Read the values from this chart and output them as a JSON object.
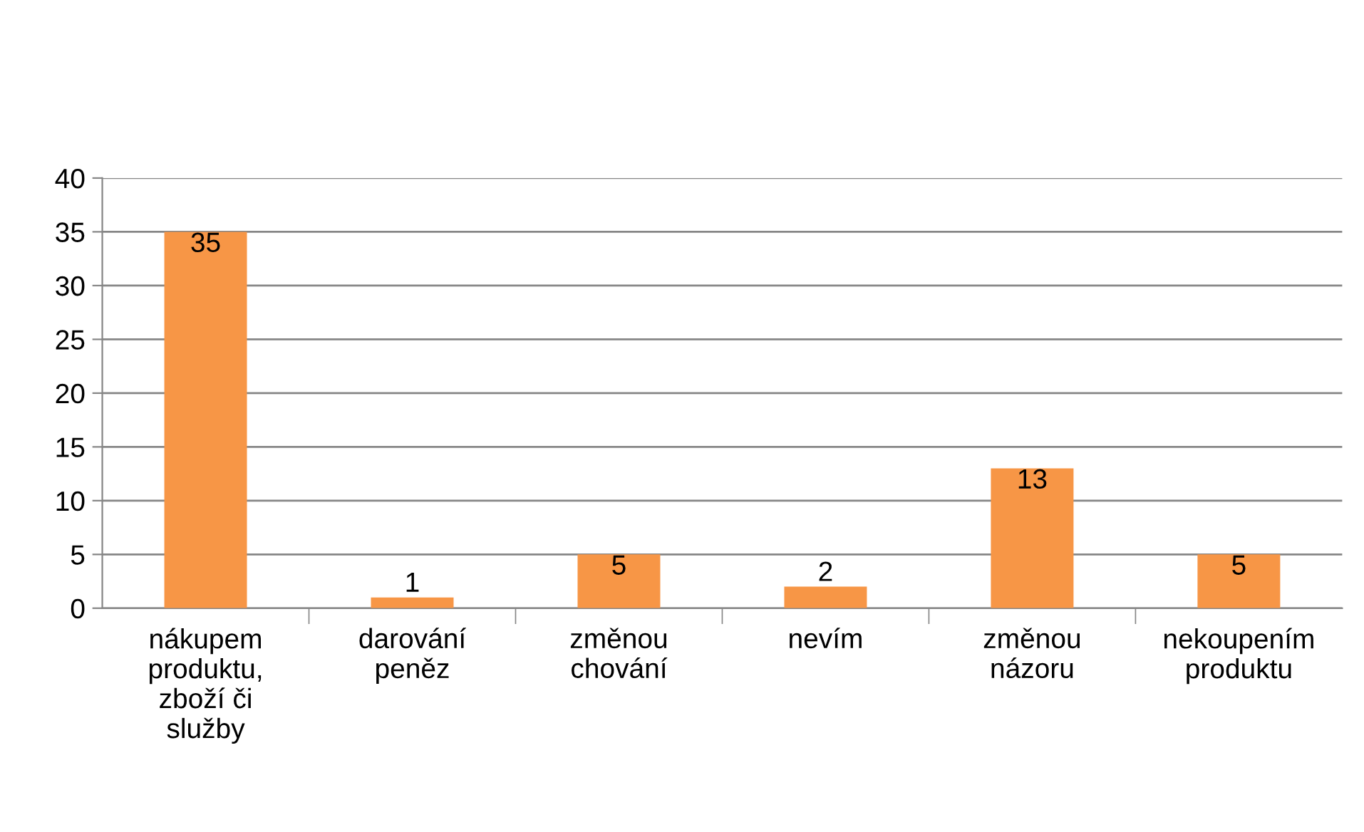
{
  "chart_data": {
    "type": "bar",
    "categories": [
      "nákupem produktu, zboží či služby",
      "darování peněz",
      "změnou chování",
      "nevím",
      "změnou názoru",
      "nekoupením produktu"
    ],
    "values": [
      35,
      1,
      5,
      2,
      13,
      5
    ],
    "color": "#f79646",
    "ylim": [
      0,
      40
    ],
    "yticks": [
      0,
      5,
      10,
      15,
      20,
      25,
      30,
      35,
      40
    ],
    "grid": "y",
    "data_labels": true,
    "legend": false
  }
}
